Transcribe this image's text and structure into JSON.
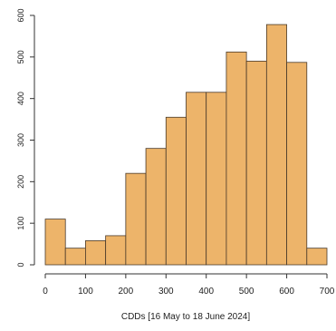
{
  "chart_data": {
    "type": "bar",
    "subtype": "histogram",
    "title": "",
    "xlabel": "CDDs [16 May to 18 June 2024]",
    "ylabel": "",
    "bin_edges": [
      0,
      50,
      100,
      150,
      200,
      250,
      300,
      350,
      400,
      450,
      500,
      550,
      600,
      650,
      700
    ],
    "values": [
      110,
      40,
      58,
      70,
      220,
      280,
      355,
      415,
      415,
      512,
      490,
      578,
      487,
      40
    ],
    "xlim": [
      0,
      700
    ],
    "ylim": [
      0,
      600
    ],
    "x_ticks": [
      0,
      100,
      200,
      300,
      400,
      500,
      600,
      700
    ],
    "y_ticks": [
      0,
      100,
      200,
      300,
      400,
      500,
      600
    ],
    "grid": false,
    "legend": "none",
    "colors": {
      "bar_fill": "#EDB46A",
      "bar_stroke": "#4a3a2a",
      "axis": "#333333"
    }
  }
}
